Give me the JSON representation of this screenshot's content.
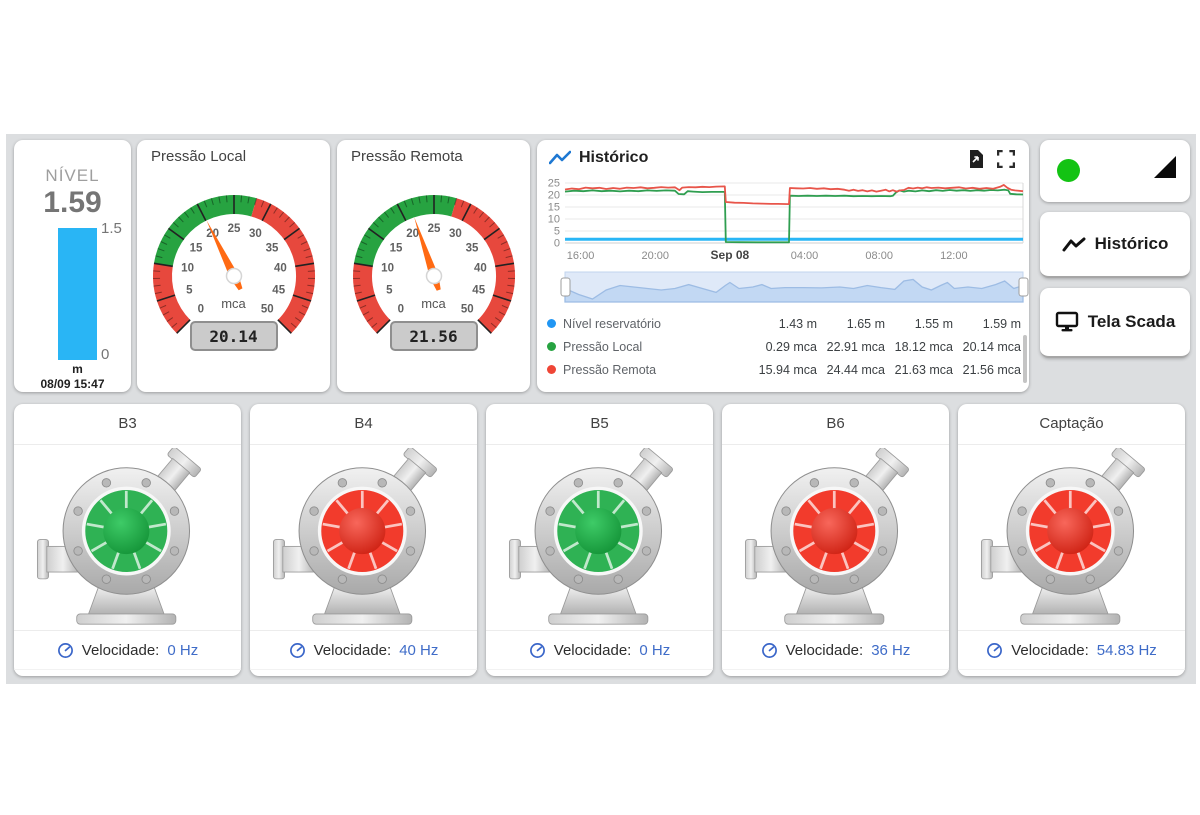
{
  "level": {
    "title": "NÍVEL",
    "value": "1.59",
    "max_label": "1.5",
    "min_label": "0",
    "unit": "m",
    "timestamp": "08/09 15:47",
    "bar_color": "#29b5f5"
  },
  "gauges": [
    {
      "title": "Pressão Local",
      "display": "20.14",
      "unit": "mca",
      "value": 20.14,
      "min": 0,
      "max": 50,
      "tick_labels": [
        "0",
        "5",
        "10",
        "15",
        "20",
        "25",
        "30",
        "35",
        "40",
        "45",
        "50"
      ],
      "segments": [
        {
          "from": 0,
          "to": 10,
          "color": "#e7483d"
        },
        {
          "from": 10,
          "to": 28,
          "color": "#27a341"
        },
        {
          "from": 28,
          "to": 50,
          "color": "#e7483d"
        }
      ],
      "needle_color": "#ff6a13"
    },
    {
      "title": "Pressão Remota",
      "display": "21.56",
      "unit": "mca",
      "value": 21.56,
      "min": 0,
      "max": 50,
      "tick_labels": [
        "0",
        "5",
        "10",
        "15",
        "20",
        "25",
        "30",
        "35",
        "40",
        "45",
        "50"
      ],
      "segments": [
        {
          "from": 0,
          "to": 10,
          "color": "#e7483d"
        },
        {
          "from": 10,
          "to": 28,
          "color": "#27a341"
        },
        {
          "from": 28,
          "to": 50,
          "color": "#e7483d"
        }
      ],
      "needle_color": "#ff6a13"
    }
  ],
  "history": {
    "title": "Histórico",
    "chart_data": {
      "type": "line",
      "title": "Histórico",
      "ylim": [
        0,
        25
      ],
      "y_ticks": [
        0,
        5,
        10,
        15,
        20,
        25
      ],
      "x_ticks": [
        "16:00",
        "20:00",
        "Sep 08",
        "04:00",
        "08:00",
        "12:00"
      ],
      "x_tick_pos": [
        3.4,
        19.7,
        36.0,
        52.3,
        68.6,
        84.9
      ],
      "grid": true,
      "legend_position": "bottom-table",
      "series": [
        {
          "name": "Nível reservatório",
          "color": "#29b6f6",
          "width": 3,
          "points": [
            [
              0,
              1.6
            ],
            [
              10,
              1.55
            ],
            [
              20,
              1.6
            ],
            [
              30,
              1.58
            ],
            [
              40,
              1.6
            ],
            [
              50,
              1.56
            ],
            [
              60,
              1.6
            ],
            [
              70,
              1.58
            ],
            [
              80,
              1.6
            ],
            [
              90,
              1.57
            ],
            [
              100,
              1.59
            ]
          ]
        },
        {
          "name": "Pressão Local",
          "color": "#2f9e50",
          "width": 1.8,
          "points": [
            [
              0,
              21.4
            ],
            [
              2,
              21.8
            ],
            [
              4,
              21.6
            ],
            [
              6,
              21.9
            ],
            [
              8,
              21.6
            ],
            [
              10,
              21.8
            ],
            [
              12,
              21.5
            ],
            [
              14,
              21.8
            ],
            [
              16,
              21.6
            ],
            [
              18,
              21.9
            ],
            [
              20,
              21.7
            ],
            [
              22,
              21.9
            ],
            [
              24,
              21.8
            ],
            [
              24.8,
              20.4
            ],
            [
              26,
              20.3
            ],
            [
              26.8,
              21.6
            ],
            [
              28,
              21.4
            ],
            [
              30,
              21.2
            ],
            [
              32,
              21.3
            ],
            [
              34.9,
              21.3
            ],
            [
              35.1,
              0.4
            ],
            [
              38,
              0.35
            ],
            [
              42,
              0.3
            ],
            [
              46,
              0.3
            ],
            [
              48.9,
              0.3
            ],
            [
              49.1,
              19.7
            ],
            [
              51,
              19.6
            ],
            [
              53,
              19.7
            ],
            [
              55,
              19.6
            ],
            [
              57,
              19.7
            ],
            [
              59,
              19.6
            ],
            [
              61,
              19.7
            ],
            [
              63,
              19.5
            ],
            [
              65,
              19.6
            ],
            [
              67,
              19.5
            ],
            [
              69,
              19.6
            ],
            [
              71,
              19.5
            ],
            [
              71.6,
              19.7
            ],
            [
              72.2,
              20.9
            ],
            [
              73,
              21.9
            ],
            [
              74,
              21.4
            ],
            [
              75,
              21.8
            ],
            [
              76.5,
              21.5
            ],
            [
              78,
              21.9
            ],
            [
              79.5,
              21.6
            ],
            [
              81,
              22.0
            ],
            [
              82.5,
              21.7
            ],
            [
              84,
              22.1
            ],
            [
              85.5,
              21.8
            ],
            [
              87,
              22.0
            ],
            [
              88.5,
              21.7
            ],
            [
              90,
              22.0
            ],
            [
              91.5,
              21.8
            ],
            [
              93,
              22.1
            ],
            [
              94.5,
              21.9
            ],
            [
              96,
              22.2
            ],
            [
              96.8,
              21.9
            ],
            [
              97.2,
              20.5
            ],
            [
              98.5,
              20.3
            ],
            [
              100,
              20.2
            ]
          ]
        },
        {
          "name": "Pressão Remota",
          "color": "#e8554a",
          "width": 1.8,
          "points": [
            [
              0,
              22.3
            ],
            [
              1.5,
              22.7
            ],
            [
              3,
              22.4
            ],
            [
              4.5,
              23.1
            ],
            [
              6,
              22.8
            ],
            [
              7.5,
              23.0
            ],
            [
              9,
              22.5
            ],
            [
              10.5,
              22.9
            ],
            [
              12,
              22.6
            ],
            [
              13.5,
              23.1
            ],
            [
              15,
              22.9
            ],
            [
              16.5,
              23.2
            ],
            [
              18,
              22.8
            ],
            [
              19.5,
              23.0
            ],
            [
              21,
              23.3
            ],
            [
              22.5,
              23.1
            ],
            [
              24,
              23.2
            ],
            [
              25,
              22.0
            ],
            [
              25.6,
              23.1
            ],
            [
              27,
              23.3
            ],
            [
              28.5,
              23.2
            ],
            [
              30,
              23.4
            ],
            [
              31.5,
              23.3
            ],
            [
              33,
              23.5
            ],
            [
              34.9,
              23.6
            ],
            [
              35.1,
              17.1
            ],
            [
              37,
              16.8
            ],
            [
              39,
              16.7
            ],
            [
              41,
              16.5
            ],
            [
              43,
              16.4
            ],
            [
              45,
              16.3
            ],
            [
              46.5,
              16.3
            ],
            [
              48.9,
              16.2
            ],
            [
              49.1,
              22.9
            ],
            [
              50.5,
              22.8
            ],
            [
              52,
              22.7
            ],
            [
              53.5,
              22.9
            ],
            [
              55,
              22.6
            ],
            [
              56.5,
              22.8
            ],
            [
              58,
              22.4
            ],
            [
              59.5,
              22.6
            ],
            [
              61,
              22.2
            ],
            [
              62,
              21.8
            ],
            [
              63,
              22.2
            ],
            [
              64,
              21.7
            ],
            [
              65,
              22.0
            ],
            [
              66,
              21.5
            ],
            [
              67,
              21.9
            ],
            [
              68,
              21.4
            ],
            [
              69,
              21.8
            ],
            [
              70,
              22.2
            ],
            [
              70.8,
              21.5
            ],
            [
              71.6,
              22.0
            ],
            [
              72.4,
              21.4
            ],
            [
              73.2,
              21.9
            ],
            [
              74,
              22.1
            ],
            [
              75,
              23.0
            ],
            [
              76,
              22.7
            ],
            [
              77,
              23.1
            ],
            [
              78,
              22.8
            ],
            [
              79,
              23.2
            ],
            [
              80,
              22.9
            ],
            [
              81.5,
              23.1
            ],
            [
              83,
              22.8
            ],
            [
              84.5,
              23.0
            ],
            [
              86,
              23.2
            ],
            [
              87.5,
              22.7
            ],
            [
              89,
              23.0
            ],
            [
              90.5,
              22.6
            ],
            [
              92,
              22.9
            ],
            [
              93.5,
              22.6
            ],
            [
              95,
              23.4
            ],
            [
              95.8,
              24.2
            ],
            [
              96.6,
              23.0
            ],
            [
              97.4,
              22.2
            ],
            [
              98.2,
              21.9
            ],
            [
              100,
              21.6
            ]
          ]
        }
      ]
    },
    "navigator_wave": [
      [
        0,
        0.55
      ],
      [
        3,
        0.75
      ],
      [
        6,
        0.9
      ],
      [
        9,
        0.6
      ],
      [
        12,
        0.45
      ],
      [
        15,
        0.5
      ],
      [
        18,
        0.55
      ],
      [
        21,
        0.6
      ],
      [
        24,
        0.55
      ],
      [
        27,
        0.42
      ],
      [
        30,
        0.55
      ],
      [
        33,
        0.68
      ],
      [
        35,
        0.45
      ],
      [
        36,
        0.35
      ],
      [
        38,
        0.55
      ],
      [
        41,
        0.5
      ],
      [
        43,
        0.42
      ],
      [
        45,
        0.55
      ],
      [
        48,
        0.52
      ],
      [
        52,
        0.52
      ],
      [
        56,
        0.53
      ],
      [
        60,
        0.5
      ],
      [
        63,
        0.55
      ],
      [
        66,
        0.45
      ],
      [
        69,
        0.52
      ],
      [
        72,
        0.58
      ],
      [
        74,
        0.3
      ],
      [
        76,
        0.25
      ],
      [
        78,
        0.5
      ],
      [
        80,
        0.6
      ],
      [
        82,
        0.45
      ],
      [
        83.5,
        0.35
      ],
      [
        85,
        0.55
      ],
      [
        88,
        0.5
      ],
      [
        91,
        0.55
      ],
      [
        94,
        0.42
      ],
      [
        96,
        0.3
      ],
      [
        98,
        0.55
      ],
      [
        100,
        0.45
      ]
    ],
    "legend": [
      {
        "label": "Nível reservatório",
        "color": "#2196f3",
        "values": [
          "1.43 m",
          "1.65 m",
          "1.55 m",
          "1.59 m"
        ]
      },
      {
        "label": "Pressão Local",
        "color": "#27a341",
        "values": [
          "0.29 mca",
          "22.91 mca",
          "18.12 mca",
          "20.14 mca"
        ]
      },
      {
        "label": "Pressão Remota",
        "color": "#ef4636",
        "values": [
          "15.94 mca",
          "24.44 mca",
          "21.63 mca",
          "21.56 mca"
        ]
      }
    ]
  },
  "side": {
    "status_color": "#13c313",
    "history_button": "Histórico",
    "scada_button": "Tela Scada"
  },
  "pumps": {
    "speed_label": "Velocidade:",
    "palette": {
      "green": {
        "main": "#2fb254",
        "dome_light": "#3ecb67",
        "dome_dark": "#0e8c31"
      },
      "red": {
        "main": "#f23b2c",
        "dome_light": "#f8675b",
        "dome_dark": "#c81708"
      }
    },
    "items": [
      {
        "title": "B3",
        "color": "green",
        "speed": "0 Hz"
      },
      {
        "title": "B4",
        "color": "red",
        "speed": "40 Hz"
      },
      {
        "title": "B5",
        "color": "green",
        "speed": "0 Hz"
      },
      {
        "title": "B6",
        "color": "red",
        "speed": "36 Hz"
      },
      {
        "title": "Captação",
        "color": "red",
        "speed": "54.83 Hz"
      }
    ]
  }
}
